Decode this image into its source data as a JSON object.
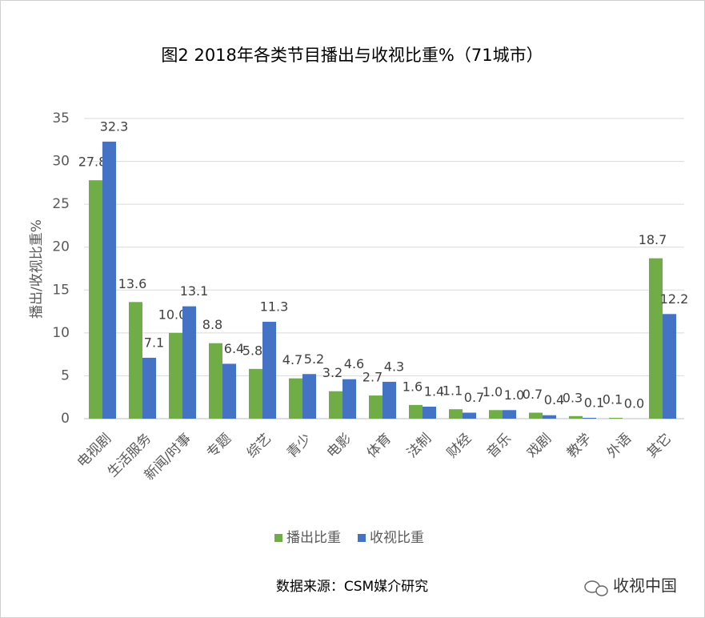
{
  "chart_data": {
    "type": "bar",
    "title": "图2  2018年各类节目播出与收视比重%（71城市）",
    "y_label": "播出/收视比重%",
    "categories": [
      "电视剧",
      "生活服务",
      "新闻/时事",
      "专题",
      "综艺",
      "青少",
      "电影",
      "体育",
      "法制",
      "财经",
      "音乐",
      "戏剧",
      "教学",
      "外语",
      "其它"
    ],
    "series": [
      {
        "name": "播出比重",
        "color": "#70ad47",
        "values": [
          27.8,
          13.6,
          10.0,
          8.8,
          5.8,
          4.7,
          3.2,
          2.7,
          1.6,
          1.1,
          1.0,
          0.7,
          0.3,
          0.1,
          18.7
        ],
        "value_labels": [
          "27.8",
          "13.6",
          "10.0",
          "8.8",
          "5.8",
          "4.7",
          "3.2",
          "2.7",
          "1.6",
          "1.1",
          "1.0",
          "0.7",
          "0.3",
          "0.1",
          "18.7"
        ]
      },
      {
        "name": "收视比重",
        "color": "#4472c4",
        "values": [
          32.3,
          7.1,
          13.1,
          6.4,
          11.3,
          5.2,
          4.6,
          4.3,
          1.4,
          0.7,
          1.0,
          0.4,
          0.1,
          0.0,
          12.2
        ],
        "value_labels": [
          "32.3",
          "7.1",
          "13.1",
          "6.4",
          "11.3",
          "5.2",
          "4.6",
          "4.3",
          "1.4",
          "0.7",
          "1.0",
          "0.4",
          "0.1",
          "0.0",
          "12.2"
        ]
      }
    ],
    "ylim": [
      0,
      35
    ],
    "yticks": [
      0,
      5,
      10,
      15,
      20,
      25,
      30,
      35
    ],
    "grid": true,
    "legend": "bottom",
    "source": "数据来源：CSM媒介研究",
    "watermark": "收视中国"
  }
}
